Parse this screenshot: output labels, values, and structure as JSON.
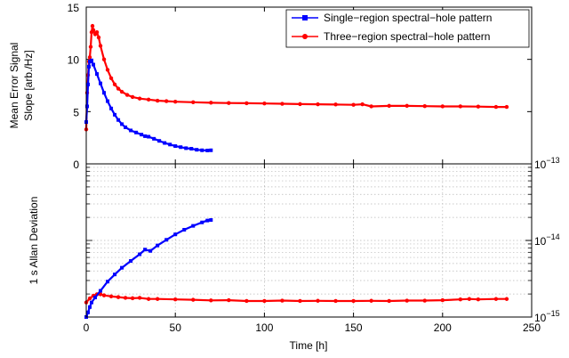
{
  "chart_data": [
    {
      "type": "line",
      "panel": "top",
      "ylabel_lines": [
        "Mean Error Signal",
        "Slope [arb./Hz]"
      ],
      "xlim": [
        0,
        250
      ],
      "ylim": [
        0,
        15
      ],
      "yticks": [
        0,
        5,
        10,
        15
      ],
      "grid": false,
      "legend_position": "top-right",
      "series": [
        {
          "name": "Single−region spectral−hole pattern",
          "color": "#0000ff",
          "marker": "square",
          "points": [
            [
              0,
              4
            ],
            [
              0.5,
              5.5
            ],
            [
              1,
              7.6
            ],
            [
              1.5,
              9.3
            ],
            [
              2,
              9.8
            ],
            [
              3,
              9.9
            ],
            [
              4,
              9.5
            ],
            [
              6,
              8.6
            ],
            [
              8,
              7.7
            ],
            [
              10,
              6.8
            ],
            [
              12,
              6.0
            ],
            [
              14,
              5.3
            ],
            [
              16,
              4.7
            ],
            [
              18,
              4.2
            ],
            [
              20,
              3.8
            ],
            [
              22,
              3.5
            ],
            [
              25,
              3.2
            ],
            [
              28,
              3.0
            ],
            [
              31,
              2.8
            ],
            [
              33,
              2.65
            ],
            [
              35,
              2.6
            ],
            [
              38,
              2.4
            ],
            [
              41,
              2.2
            ],
            [
              44,
              2.0
            ],
            [
              47,
              1.85
            ],
            [
              50,
              1.7
            ],
            [
              53,
              1.6
            ],
            [
              56,
              1.5
            ],
            [
              59,
              1.45
            ],
            [
              62,
              1.35
            ],
            [
              65,
              1.3
            ],
            [
              68,
              1.28
            ],
            [
              70,
              1.3
            ]
          ]
        },
        {
          "name": "Three−region spectral−hole pattern",
          "color": "#ff0000",
          "marker": "circle",
          "points": [
            [
              0,
              3.3
            ],
            [
              0.5,
              6.8
            ],
            [
              1,
              8.5
            ],
            [
              1.5,
              9.8
            ],
            [
              2,
              10.2
            ],
            [
              2.5,
              11.2
            ],
            [
              3,
              12.6
            ],
            [
              3.5,
              13.2
            ],
            [
              4,
              12.8
            ],
            [
              5,
              12.4
            ],
            [
              6,
              12.6
            ],
            [
              7,
              12.1
            ],
            [
              8,
              11.3
            ],
            [
              10,
              10.0
            ],
            [
              12,
              9.0
            ],
            [
              14,
              8.2
            ],
            [
              16,
              7.6
            ],
            [
              18,
              7.2
            ],
            [
              20,
              6.9
            ],
            [
              23,
              6.6
            ],
            [
              26,
              6.4
            ],
            [
              30,
              6.25
            ],
            [
              35,
              6.15
            ],
            [
              40,
              6.05
            ],
            [
              45,
              6.0
            ],
            [
              50,
              5.95
            ],
            [
              60,
              5.9
            ],
            [
              70,
              5.85
            ],
            [
              80,
              5.82
            ],
            [
              90,
              5.8
            ],
            [
              100,
              5.78
            ],
            [
              110,
              5.75
            ],
            [
              120,
              5.72
            ],
            [
              130,
              5.7
            ],
            [
              140,
              5.68
            ],
            [
              150,
              5.65
            ],
            [
              155,
              5.7
            ],
            [
              160,
              5.5
            ],
            [
              170,
              5.55
            ],
            [
              180,
              5.55
            ],
            [
              190,
              5.52
            ],
            [
              200,
              5.5
            ],
            [
              210,
              5.5
            ],
            [
              220,
              5.48
            ],
            [
              230,
              5.45
            ],
            [
              236,
              5.45
            ]
          ]
        }
      ]
    },
    {
      "type": "line",
      "panel": "bottom",
      "xlabel": "Time [h]",
      "ylabel": "1 s Allan Deviation",
      "xlim": [
        0,
        250
      ],
      "xticks": [
        0,
        50,
        100,
        150,
        200,
        250
      ],
      "yscale": "log",
      "ylim": [
        1e-15,
        1e-13
      ],
      "yaxis_side": "right",
      "ytick_labels": [
        {
          "value": 1e-13,
          "base": "10",
          "exp": "−13"
        },
        {
          "value": 1e-14,
          "base": "10",
          "exp": "−14"
        },
        {
          "value": 1e-15,
          "base": "10",
          "exp": "−15"
        }
      ],
      "grid": true,
      "series": [
        {
          "name": "Single−region spectral−hole pattern",
          "color": "#0000ff",
          "marker": "square",
          "points": [
            [
              0,
              1e-15
            ],
            [
              1,
              1.15e-15
            ],
            [
              2,
              1.35e-15
            ],
            [
              3,
              1.55e-15
            ],
            [
              5,
              1.8e-15
            ],
            [
              8,
              2.2e-15
            ],
            [
              12,
              2.9e-15
            ],
            [
              16,
              3.6e-15
            ],
            [
              20,
              4.4e-15
            ],
            [
              25,
              5.4e-15
            ],
            [
              30,
              6.6e-15
            ],
            [
              33,
              7.6e-15
            ],
            [
              36,
              7.3e-15
            ],
            [
              40,
              8.6e-15
            ],
            [
              45,
              1.02e-14
            ],
            [
              50,
              1.2e-14
            ],
            [
              55,
              1.38e-14
            ],
            [
              60,
              1.55e-14
            ],
            [
              65,
              1.72e-14
            ],
            [
              68,
              1.82e-14
            ],
            [
              70,
              1.85e-14
            ]
          ]
        },
        {
          "name": "Three−region spectral−hole pattern",
          "color": "#ff0000",
          "marker": "circle",
          "points": [
            [
              0,
              1.55e-15
            ],
            [
              2,
              1.75e-15
            ],
            [
              4,
              1.9e-15
            ],
            [
              6,
              1.98e-15
            ],
            [
              8,
              1.98e-15
            ],
            [
              10,
              1.92e-15
            ],
            [
              14,
              1.86e-15
            ],
            [
              18,
              1.82e-15
            ],
            [
              22,
              1.78e-15
            ],
            [
              26,
              1.76e-15
            ],
            [
              30,
              1.78e-15
            ],
            [
              35,
              1.72e-15
            ],
            [
              40,
              1.72e-15
            ],
            [
              50,
              1.7e-15
            ],
            [
              60,
              1.68e-15
            ],
            [
              70,
              1.65e-15
            ],
            [
              80,
              1.66e-15
            ],
            [
              90,
              1.62e-15
            ],
            [
              100,
              1.62e-15
            ],
            [
              110,
              1.64e-15
            ],
            [
              120,
              1.62e-15
            ],
            [
              130,
              1.63e-15
            ],
            [
              140,
              1.62e-15
            ],
            [
              150,
              1.62e-15
            ],
            [
              160,
              1.63e-15
            ],
            [
              170,
              1.62e-15
            ],
            [
              180,
              1.64e-15
            ],
            [
              190,
              1.64e-15
            ],
            [
              200,
              1.66e-15
            ],
            [
              210,
              1.7e-15
            ],
            [
              215,
              1.72e-15
            ],
            [
              220,
              1.7e-15
            ],
            [
              230,
              1.72e-15
            ],
            [
              236,
              1.72e-15
            ]
          ]
        }
      ]
    }
  ]
}
